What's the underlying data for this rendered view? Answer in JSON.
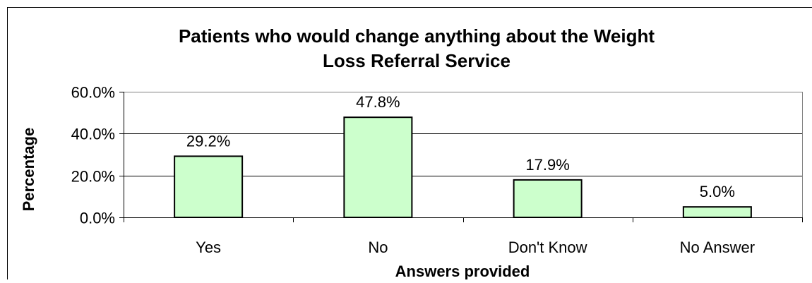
{
  "chart_data": {
    "type": "bar",
    "title_lines": [
      "Patients who would change anything about the Weight",
      "Loss Referral Service"
    ],
    "xlabel": "Answers provided",
    "ylabel": "Percentage",
    "categories": [
      "Yes",
      "No",
      "Don't Know",
      "No Answer"
    ],
    "values": [
      29.2,
      47.8,
      17.9,
      5.0
    ],
    "data_labels": [
      "29.2%",
      "47.8%",
      "17.9%",
      "5.0%"
    ],
    "ylim": [
      0,
      60
    ],
    "yticks": [
      0,
      20,
      40,
      60
    ],
    "ytick_labels": [
      "0.0%",
      "20.0%",
      "40.0%",
      "60.0%"
    ],
    "grid": true,
    "legend": "none",
    "colors": {
      "bar_fill": "#ccffcc",
      "bar_stroke": "#000000",
      "plot_border": "#808080",
      "grid": "#000000",
      "frame": "#000000"
    }
  }
}
